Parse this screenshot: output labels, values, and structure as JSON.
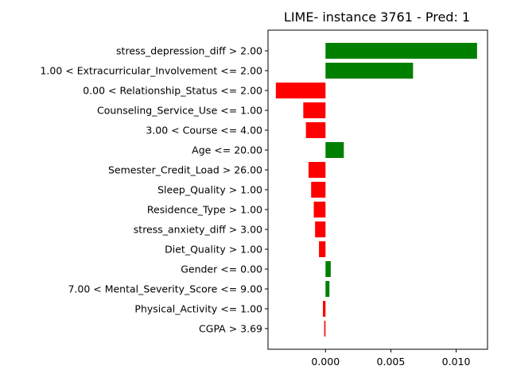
{
  "chart_data": {
    "type": "bar",
    "orientation": "horizontal",
    "title": "LIME- instance 3761 - Pred: 1",
    "xlabel": "",
    "ylabel": "",
    "xlim": [
      -0.0044,
      0.0124
    ],
    "xticks": [
      0.0,
      0.005,
      0.01
    ],
    "xtick_labels": [
      "0.000",
      "0.005",
      "0.010"
    ],
    "grid": false,
    "colors": {
      "positive": "#008000",
      "negative": "#ff0000"
    },
    "categories": [
      "stress_depression_diff > 2.00",
      "1.00 < Extracurricular_Involvement <= 2.00",
      "0.00 < Relationship_Status <= 2.00",
      "Counseling_Service_Use <= 1.00",
      "3.00 < Course <= 4.00",
      "Age <= 20.00",
      "Semester_Credit_Load > 26.00",
      "Sleep_Quality > 1.00",
      "Residence_Type > 1.00",
      "stress_anxiety_diff > 3.00",
      "Diet_Quality > 1.00",
      "Gender <= 0.00",
      "7.00 < Mental_Severity_Score <= 9.00",
      "Physical_Activity <= 1.00",
      "CGPA > 3.69"
    ],
    "values": [
      0.0116,
      0.0067,
      -0.0038,
      -0.0017,
      -0.0015,
      0.0014,
      -0.0013,
      -0.0011,
      -0.0009,
      -0.0008,
      -0.0005,
      0.0004,
      0.0003,
      -0.0002,
      -0.0001
    ]
  }
}
